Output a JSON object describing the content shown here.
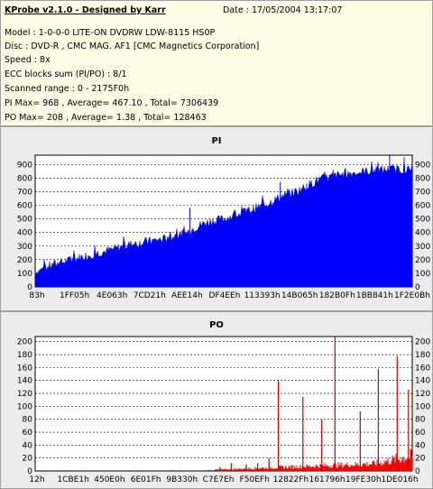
{
  "header": {
    "title": "KProbe v2.1.0 - Designed by Karr",
    "date": "Date : 17/05/2004 13:17:07",
    "lines": [
      "Model : 1-0-0-0 LITE-ON DVDRW LDW-8115   HS0P",
      "Disc : DVD-R , CMC MAG. AF1 [CMC Magnetics Corporation]",
      "Speed : 8x",
      "ECC blocks sum (PI/PO) : 8/1",
      "Scanned range : 0 - 2175F0h",
      "PI Max= 968 , Average= 467.10 , Total= 7306439",
      "PO Max= 208 , Average= 1.38 , Total= 128463"
    ]
  },
  "chart_data": [
    {
      "type": "area",
      "title": "PI",
      "color": "#0000ff",
      "ylim": [
        0,
        968
      ],
      "yticks": [
        0,
        100,
        200,
        300,
        400,
        500,
        600,
        700,
        800,
        900
      ],
      "xticks": [
        "83h",
        "1FF05h",
        "4E063h",
        "7CD21h",
        "AEE14h",
        "DF4EEh",
        "113393h",
        "14B065h",
        "182B0Fh",
        "1BB841h",
        "1F2E0Bh"
      ],
      "grid": true,
      "profile": [
        [
          0,
          110
        ],
        [
          0.05,
          165
        ],
        [
          0.1,
          200
        ],
        [
          0.15,
          240
        ],
        [
          0.2,
          270
        ],
        [
          0.25,
          310
        ],
        [
          0.3,
          335
        ],
        [
          0.35,
          355
        ],
        [
          0.4,
          395
        ],
        [
          0.42,
          430
        ],
        [
          0.45,
          470
        ],
        [
          0.5,
          500
        ],
        [
          0.55,
          545
        ],
        [
          0.6,
          590
        ],
        [
          0.65,
          660
        ],
        [
          0.7,
          710
        ],
        [
          0.75,
          785
        ],
        [
          0.8,
          820
        ],
        [
          0.85,
          840
        ],
        [
          0.9,
          855
        ],
        [
          0.95,
          865
        ],
        [
          1.0,
          860
        ]
      ],
      "spikes": [
        [
          0.41,
          580
        ],
        [
          0.65,
          770
        ],
        [
          0.72,
          760
        ],
        [
          0.79,
          860
        ],
        [
          0.94,
          968
        ]
      ]
    },
    {
      "type": "bar",
      "title": "PO",
      "color": "#ff0000",
      "ylim": [
        0,
        208
      ],
      "yticks": [
        0,
        20,
        40,
        60,
        80,
        100,
        120,
        140,
        160,
        180,
        200
      ],
      "xticks": [
        "12h",
        "1CBE1h",
        "450E0h",
        "6E01Fh",
        "9B330h",
        "C7E7Eh",
        "F50EFh",
        "12822Fh",
        "161796h",
        "19FE30h",
        "1DE016h"
      ],
      "grid": true,
      "spikes": [
        [
          0.49,
          6
        ],
        [
          0.52,
          12
        ],
        [
          0.56,
          10
        ],
        [
          0.59,
          12
        ],
        [
          0.62,
          20
        ],
        [
          0.645,
          140
        ],
        [
          0.71,
          115
        ],
        [
          0.76,
          80
        ],
        [
          0.795,
          208
        ],
        [
          0.862,
          92
        ],
        [
          0.91,
          158
        ],
        [
          0.96,
          178
        ],
        [
          0.99,
          126
        ]
      ]
    }
  ]
}
